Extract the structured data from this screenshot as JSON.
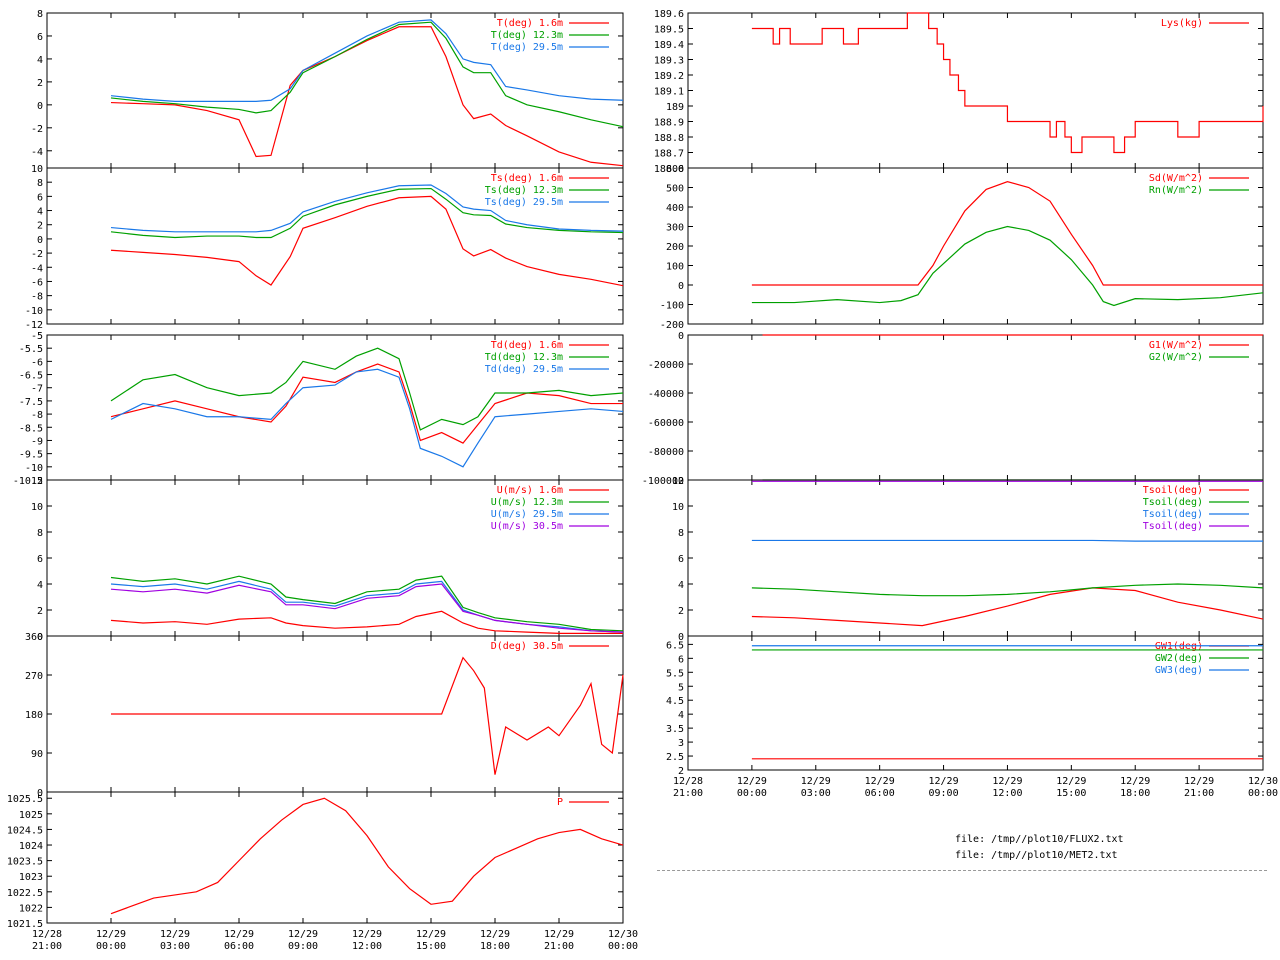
{
  "chart_data": [
    {
      "id": "T",
      "type": "line",
      "ylim": [
        -5.5,
        8
      ],
      "yticks": [
        8,
        6,
        4,
        2,
        0,
        -2,
        -4
      ],
      "x_data": [
        0,
        1.5,
        3,
        4.5,
        6,
        6.8,
        7.5,
        8.4,
        9,
        10.5,
        12,
        13.5,
        15,
        15.7,
        16.5,
        17,
        17.8,
        18.5,
        19.5,
        21,
        22.5,
        24
      ],
      "series": [
        {
          "name": "T(deg)  1.6m",
          "color": "#ff0000",
          "values": [
            0.2,
            0.1,
            0,
            -0.5,
            -1.3,
            -4.5,
            -4.4,
            1.7,
            3,
            4.2,
            5.6,
            6.8,
            6.8,
            4.2,
            0,
            -1.2,
            -0.8,
            -1.8,
            -2.7,
            -4.1,
            -5,
            -5.3
          ]
        },
        {
          "name": "T(deg) 12.3m",
          "color": "#00a000",
          "values": [
            0.6,
            0.3,
            0.1,
            -0.2,
            -0.4,
            -0.7,
            -0.5,
            1.1,
            2.8,
            4.2,
            5.7,
            7,
            7.2,
            5.8,
            3.3,
            2.8,
            2.8,
            0.8,
            0,
            -0.6,
            -1.3,
            -1.9
          ]
        },
        {
          "name": "T(deg) 29.5m",
          "color": "#1a78e8",
          "values": [
            0.8,
            0.5,
            0.3,
            0.3,
            0.3,
            0.3,
            0.4,
            1.4,
            3,
            4.5,
            6,
            7.2,
            7.4,
            6.2,
            4,
            3.7,
            3.5,
            1.6,
            1.3,
            0.8,
            0.5,
            0.4
          ]
        }
      ]
    },
    {
      "id": "Ts",
      "type": "line",
      "ylim": [
        -12,
        10
      ],
      "yticks": [
        10,
        8,
        6,
        4,
        2,
        0,
        -2,
        -4,
        -6,
        -8,
        -10,
        -12
      ],
      "x_data": [
        0,
        1.5,
        3,
        4.5,
        6,
        6.8,
        7.5,
        8.4,
        9,
        10.5,
        12,
        13.5,
        15,
        15.7,
        16.5,
        17,
        17.8,
        18.5,
        19.5,
        21,
        22.5,
        24
      ],
      "series": [
        {
          "name": "Ts(deg)  1.6m",
          "color": "#ff0000",
          "values": [
            -1.6,
            -1.9,
            -2.2,
            -2.6,
            -3.2,
            -5.2,
            -6.5,
            -2.5,
            1.5,
            3,
            4.6,
            5.8,
            6,
            4.2,
            -1.4,
            -2.4,
            -1.5,
            -2.7,
            -3.9,
            -5,
            -5.7,
            -6.6
          ]
        },
        {
          "name": "Ts(deg) 12.3m",
          "color": "#00a000",
          "values": [
            1,
            0.5,
            0.2,
            0.4,
            0.4,
            0.2,
            0.2,
            1.5,
            3.2,
            4.8,
            6,
            7,
            7.1,
            5.6,
            3.7,
            3.4,
            3.3,
            2.1,
            1.6,
            1.2,
            1,
            0.9
          ]
        },
        {
          "name": "Ts(deg) 29.5m",
          "color": "#1a78e8",
          "values": [
            1.6,
            1.2,
            1,
            1,
            1,
            1,
            1.2,
            2.2,
            3.8,
            5.3,
            6.5,
            7.5,
            7.6,
            6.4,
            4.5,
            4.2,
            4,
            2.6,
            2,
            1.4,
            1.2,
            1.1
          ]
        }
      ]
    },
    {
      "id": "Td",
      "type": "line",
      "ylim": [
        -10.5,
        -5
      ],
      "yticks": [
        -5,
        -5.5,
        -6,
        -6.5,
        -7,
        -7.5,
        -8,
        -8.5,
        -9,
        -9.5,
        -10,
        -10.5
      ],
      "x_data": [
        0,
        1.5,
        3,
        4.5,
        6,
        7.5,
        8.2,
        9,
        10.5,
        11.5,
        12.5,
        13.5,
        14,
        14.5,
        15.5,
        16.5,
        17.2,
        18,
        19.5,
        21,
        22.5,
        24
      ],
      "series": [
        {
          "name": "Td(deg)  1.6m",
          "color": "#ff0000",
          "values": [
            -8.1,
            -7.8,
            -7.5,
            -7.8,
            -8.1,
            -8.3,
            -7.7,
            -6.6,
            -6.8,
            -6.4,
            -6.1,
            -6.4,
            -7.6,
            -9,
            -8.7,
            -9.1,
            -8.4,
            -7.6,
            -7.2,
            -7.3,
            -7.6,
            -7.6
          ]
        },
        {
          "name": "Td(deg) 12.3m",
          "color": "#00a000",
          "values": [
            -7.5,
            -6.7,
            -6.5,
            -7,
            -7.3,
            -7.2,
            -6.8,
            -6,
            -6.3,
            -5.8,
            -5.5,
            -5.9,
            -7.2,
            -8.6,
            -8.2,
            -8.4,
            -8.1,
            -7.2,
            -7.2,
            -7.1,
            -7.3,
            -7.2
          ]
        },
        {
          "name": "Td(deg) 29.5m",
          "color": "#1a78e8",
          "values": [
            -8.2,
            -7.6,
            -7.8,
            -8.1,
            -8.1,
            -8.2,
            -7.6,
            -7,
            -6.9,
            -6.4,
            -6.3,
            -6.6,
            -7.8,
            -9.3,
            -9.6,
            -10,
            -9.1,
            -8.1,
            -8,
            -7.9,
            -7.8,
            -7.9
          ]
        }
      ]
    },
    {
      "id": "U",
      "type": "line",
      "ylim": [
        0,
        12
      ],
      "yticks": [
        12,
        10,
        8,
        6,
        4,
        2,
        0
      ],
      "x_data": [
        0,
        1.5,
        3,
        4.5,
        6,
        7.5,
        8.2,
        9,
        10.5,
        12,
        13.5,
        14.3,
        15.5,
        16.5,
        17.2,
        18,
        19.5,
        21,
        22.5,
        24
      ],
      "series": [
        {
          "name": "U(m/s)  1.6m",
          "color": "#ff0000",
          "values": [
            1.2,
            1,
            1.1,
            0.9,
            1.3,
            1.4,
            1,
            0.8,
            0.6,
            0.7,
            0.9,
            1.5,
            1.9,
            1,
            0.6,
            0.4,
            0.3,
            0.2,
            0.2,
            0.2
          ]
        },
        {
          "name": "U(m/s) 12.3m",
          "color": "#00a000",
          "values": [
            4.5,
            4.2,
            4.4,
            4,
            4.6,
            4,
            3,
            2.8,
            2.5,
            3.4,
            3.6,
            4.3,
            4.6,
            2.2,
            1.8,
            1.4,
            1.1,
            0.9,
            0.5,
            0.4
          ]
        },
        {
          "name": "U(m/s) 29.5m",
          "color": "#1a78e8",
          "values": [
            4,
            3.8,
            4,
            3.6,
            4.2,
            3.6,
            2.6,
            2.6,
            2.3,
            3.1,
            3.3,
            4,
            4.2,
            2,
            1.6,
            1.2,
            0.9,
            0.7,
            0.4,
            0.3
          ]
        },
        {
          "name": "U(m/s) 30.5m",
          "color": "#a000e0",
          "values": [
            3.6,
            3.4,
            3.6,
            3.3,
            3.9,
            3.4,
            2.4,
            2.4,
            2.1,
            2.9,
            3.1,
            3.8,
            4,
            1.9,
            1.6,
            1.2,
            0.9,
            0.6,
            0.4,
            0.3
          ]
        }
      ]
    },
    {
      "id": "D",
      "type": "line",
      "ylim": [
        0,
        360
      ],
      "yticks": [
        360,
        270,
        180,
        90,
        0
      ],
      "x_data": [
        0,
        2,
        4,
        6,
        8,
        10,
        12,
        14,
        15.5,
        16.5,
        17,
        17.5,
        18,
        18.5,
        19.5,
        20.5,
        21,
        22,
        22.5,
        23,
        23.5,
        24
      ],
      "series": [
        {
          "name": "D(deg)  30.5m",
          "color": "#ff0000",
          "values": [
            180,
            180,
            180,
            180,
            180,
            180,
            180,
            180,
            180,
            310,
            280,
            240,
            40,
            150,
            120,
            150,
            130,
            200,
            250,
            110,
            90,
            270
          ]
        }
      ]
    },
    {
      "id": "P",
      "type": "line",
      "ylim": [
        1021.5,
        1025.7
      ],
      "yticks": [
        1025.5,
        1025,
        1024.5,
        1024,
        1023.5,
        1023,
        1022.5,
        1022,
        1021.5
      ],
      "x_data": [
        0,
        1,
        2,
        3,
        4,
        5,
        6,
        7,
        8,
        9,
        10,
        11,
        12,
        13,
        14,
        15,
        16,
        17,
        18,
        19,
        20,
        21,
        22,
        23,
        24
      ],
      "series": [
        {
          "name": "P",
          "color": "#ff0000",
          "values": [
            1021.8,
            1022.05,
            1022.3,
            1022.4,
            1022.5,
            1022.8,
            1023.5,
            1024.2,
            1024.8,
            1025.3,
            1025.5,
            1025.1,
            1024.3,
            1023.3,
            1022.6,
            1022.1,
            1022.2,
            1023,
            1023.6,
            1023.9,
            1024.2,
            1024.4,
            1024.5,
            1024.2,
            1024
          ]
        }
      ]
    },
    {
      "id": "Lys",
      "type": "line",
      "ylim": [
        188.6,
        189.6
      ],
      "yticks": [
        189.6,
        189.5,
        189.4,
        189.3,
        189.2,
        189.1,
        189,
        188.9,
        188.8,
        188.7,
        188.6
      ],
      "step": true,
      "x_data": [
        0,
        1,
        1.3,
        1.8,
        2.7,
        3.3,
        4.3,
        5,
        6,
        7.3,
        7.7,
        8,
        8.3,
        8.7,
        9,
        9.3,
        9.7,
        10,
        11,
        12,
        13,
        14,
        14.3,
        14.7,
        15,
        15.5,
        16,
        17,
        17.5,
        18,
        20,
        21,
        24
      ],
      "series": [
        {
          "name": "Lys(kg)",
          "color": "#ff0000",
          "values": [
            189.5,
            189.4,
            189.5,
            189.4,
            189.4,
            189.5,
            189.4,
            189.5,
            189.5,
            189.6,
            189.6,
            189.6,
            189.5,
            189.4,
            189.3,
            189.2,
            189.1,
            189,
            189,
            188.9,
            188.9,
            188.8,
            188.9,
            188.8,
            188.7,
            188.8,
            188.8,
            188.7,
            188.8,
            188.9,
            188.8,
            188.9,
            189
          ]
        }
      ]
    },
    {
      "id": "Sd",
      "type": "line",
      "ylim": [
        -200,
        600
      ],
      "yticks": [
        600,
        500,
        400,
        300,
        200,
        100,
        0,
        -100,
        -200
      ],
      "x_data": [
        0,
        2,
        4,
        6,
        7,
        7.8,
        8.5,
        9,
        10,
        11,
        12,
        13,
        14,
        15,
        16,
        16.5,
        17,
        18,
        20,
        22,
        24
      ],
      "series": [
        {
          "name": "Sd(W/m^2)",
          "color": "#ff0000",
          "values": [
            0,
            0,
            0,
            0,
            0,
            0,
            100,
            200,
            380,
            490,
            530,
            500,
            430,
            260,
            100,
            0,
            0,
            0,
            0,
            0,
            0
          ]
        },
        {
          "name": "Rn(W/m^2)",
          "color": "#00a000",
          "values": [
            -90,
            -90,
            -75,
            -90,
            -80,
            -50,
            60,
            110,
            210,
            270,
            300,
            280,
            230,
            130,
            0,
            -85,
            -105,
            -70,
            -75,
            -65,
            -40
          ]
        }
      ]
    },
    {
      "id": "G",
      "type": "line",
      "ylim": [
        -100000,
        0
      ],
      "yticks": [
        0,
        -20000,
        -40000,
        -60000,
        -80000,
        -100000
      ],
      "x_data": [
        0.5,
        24
      ],
      "series": [
        {
          "name": "G1(W/m^2)",
          "color": "#ff0000",
          "values": [
            0,
            0
          ]
        },
        {
          "name": "G2(W/m^2)",
          "color": "#00a000",
          "values": [
            -100000,
            -100000
          ]
        }
      ]
    },
    {
      "id": "Tsoil",
      "type": "line",
      "ylim": [
        0,
        12
      ],
      "yticks": [
        12,
        10,
        8,
        6,
        4,
        2,
        0
      ],
      "x_data": [
        0,
        2,
        4,
        6,
        8,
        10,
        12,
        14,
        16,
        18,
        20,
        22,
        24
      ],
      "series": [
        {
          "name": "Tsoil(deg)",
          "color": "#ff0000",
          "values": [
            1.5,
            1.4,
            1.2,
            1,
            0.8,
            1.5,
            2.3,
            3.2,
            3.7,
            3.5,
            2.6,
            2,
            1.3
          ]
        },
        {
          "name": "Tsoil(deg)",
          "color": "#00a000",
          "values": [
            3.7,
            3.6,
            3.4,
            3.2,
            3.1,
            3.1,
            3.2,
            3.4,
            3.7,
            3.9,
            4,
            3.9,
            3.7
          ]
        },
        {
          "name": "Tsoil(deg)",
          "color": "#1a78e8",
          "values": [
            7.35,
            7.35,
            7.35,
            7.35,
            7.35,
            7.35,
            7.35,
            7.35,
            7.35,
            7.3,
            7.3,
            7.3,
            7.3
          ]
        },
        {
          "name": "Tsoil(deg)",
          "color": "#a000e0",
          "values": [
            11.9,
            11.9,
            11.9,
            11.9,
            11.9,
            11.9,
            11.9,
            11.9,
            11.9,
            11.9,
            11.9,
            11.9,
            11.9
          ]
        }
      ]
    },
    {
      "id": "GW",
      "type": "line",
      "ylim": [
        2,
        6.8
      ],
      "yticks": [
        6.5,
        6,
        5.5,
        5,
        4.5,
        4,
        3.5,
        3,
        2.5,
        2
      ],
      "x_data": [
        0,
        24
      ],
      "series": [
        {
          "name": "GW1(deg)",
          "color": "#ff0000",
          "values": [
            2.4,
            2.4
          ]
        },
        {
          "name": "GW2(deg)",
          "color": "#00a000",
          "values": [
            6.3,
            6.3
          ]
        },
        {
          "name": "GW3(deg)",
          "color": "#1a78e8",
          "values": [
            6.45,
            6.45
          ]
        }
      ]
    }
  ],
  "xaxis": {
    "ticks": [
      {
        "t": -3,
        "l1": "12/28",
        "l2": "21:00"
      },
      {
        "t": 0,
        "l1": "12/29",
        "l2": "00:00"
      },
      {
        "t": 3,
        "l1": "12/29",
        "l2": "03:00"
      },
      {
        "t": 6,
        "l1": "12/29",
        "l2": "06:00"
      },
      {
        "t": 9,
        "l1": "12/29",
        "l2": "09:00"
      },
      {
        "t": 12,
        "l1": "12/29",
        "l2": "12:00"
      },
      {
        "t": 15,
        "l1": "12/29",
        "l2": "15:00"
      },
      {
        "t": 18,
        "l1": "12/29",
        "l2": "18:00"
      },
      {
        "t": 21,
        "l1": "12/29",
        "l2": "21:00"
      },
      {
        "t": 24,
        "l1": "12/30",
        "l2": "00:00"
      }
    ]
  },
  "files": {
    "line1": "file: /tmp//plot10/FLUX2.txt",
    "line2": "file: /tmp//plot10/MET2.txt"
  }
}
